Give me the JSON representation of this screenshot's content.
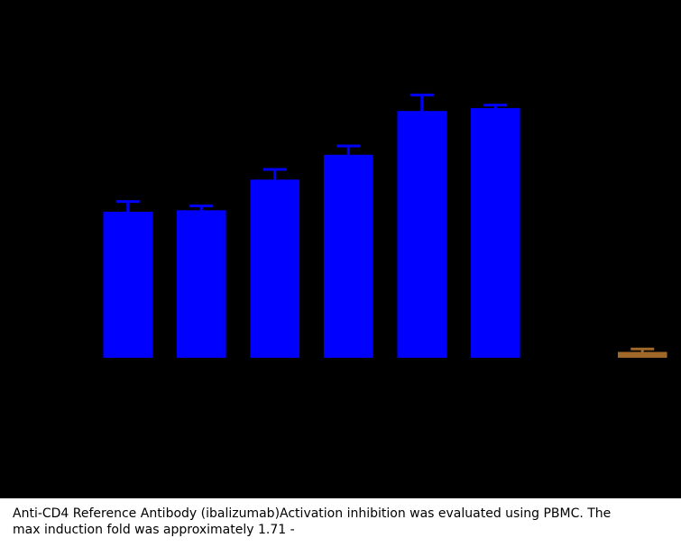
{
  "chart_data": {
    "type": "bar",
    "categories": [
      null,
      null,
      null,
      null,
      null,
      null,
      null,
      null
    ],
    "values": [
      1.0,
      1.01,
      1.22,
      1.39,
      1.69,
      1.71,
      null,
      0.04
    ],
    "errors": [
      0.07,
      0.03,
      0.07,
      0.06,
      0.11,
      0.02,
      null,
      0.02
    ],
    "colors": [
      "#0000ff",
      "#0000ff",
      "#0000ff",
      "#0000ff",
      "#0000ff",
      "#0000ff",
      "#0000ff",
      "#a0692a"
    ],
    "ylim": [
      0,
      2.45
    ]
  },
  "caption": {
    "text": "Anti-CD4 Reference Antibody (ibalizumab)Activation inhibition was evaluated using PBMC. The max induction fold was approximately 1.71 -"
  }
}
